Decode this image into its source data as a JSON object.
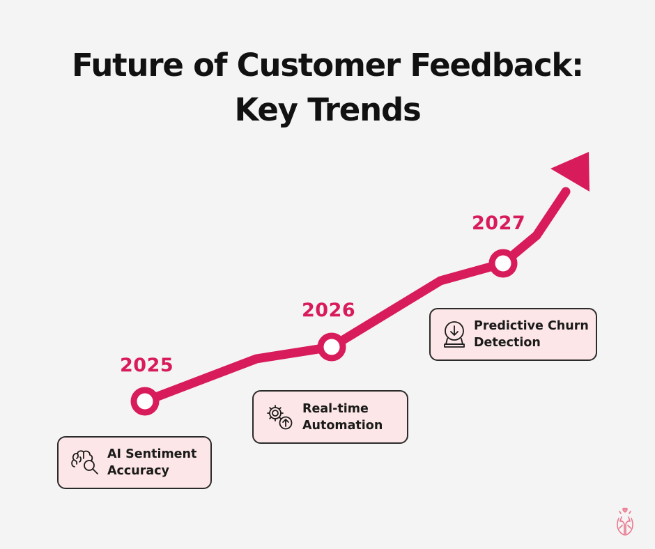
{
  "title": {
    "line1": "Future of Customer Feedback:",
    "line2": "Key Trends"
  },
  "milestones": [
    {
      "year": "2025",
      "label_line1": "AI Sentiment",
      "label_line2": "Accuracy",
      "icon": "brain-search-icon"
    },
    {
      "year": "2026",
      "label_line1": "Real-time",
      "label_line2": "Automation",
      "icon": "gears-arrow-icon"
    },
    {
      "year": "2027",
      "label_line1": "Predictive Churn",
      "label_line2": "Detection",
      "icon": "crystal-ball-icon"
    }
  ],
  "logo": {
    "icon": "hands-heart-logo-icon"
  },
  "colors": {
    "accent": "#d81b5a",
    "background": "#f5f4f4",
    "card_fill": "#fde6e7",
    "card_border": "#2a2a2a",
    "text": "#111111"
  }
}
